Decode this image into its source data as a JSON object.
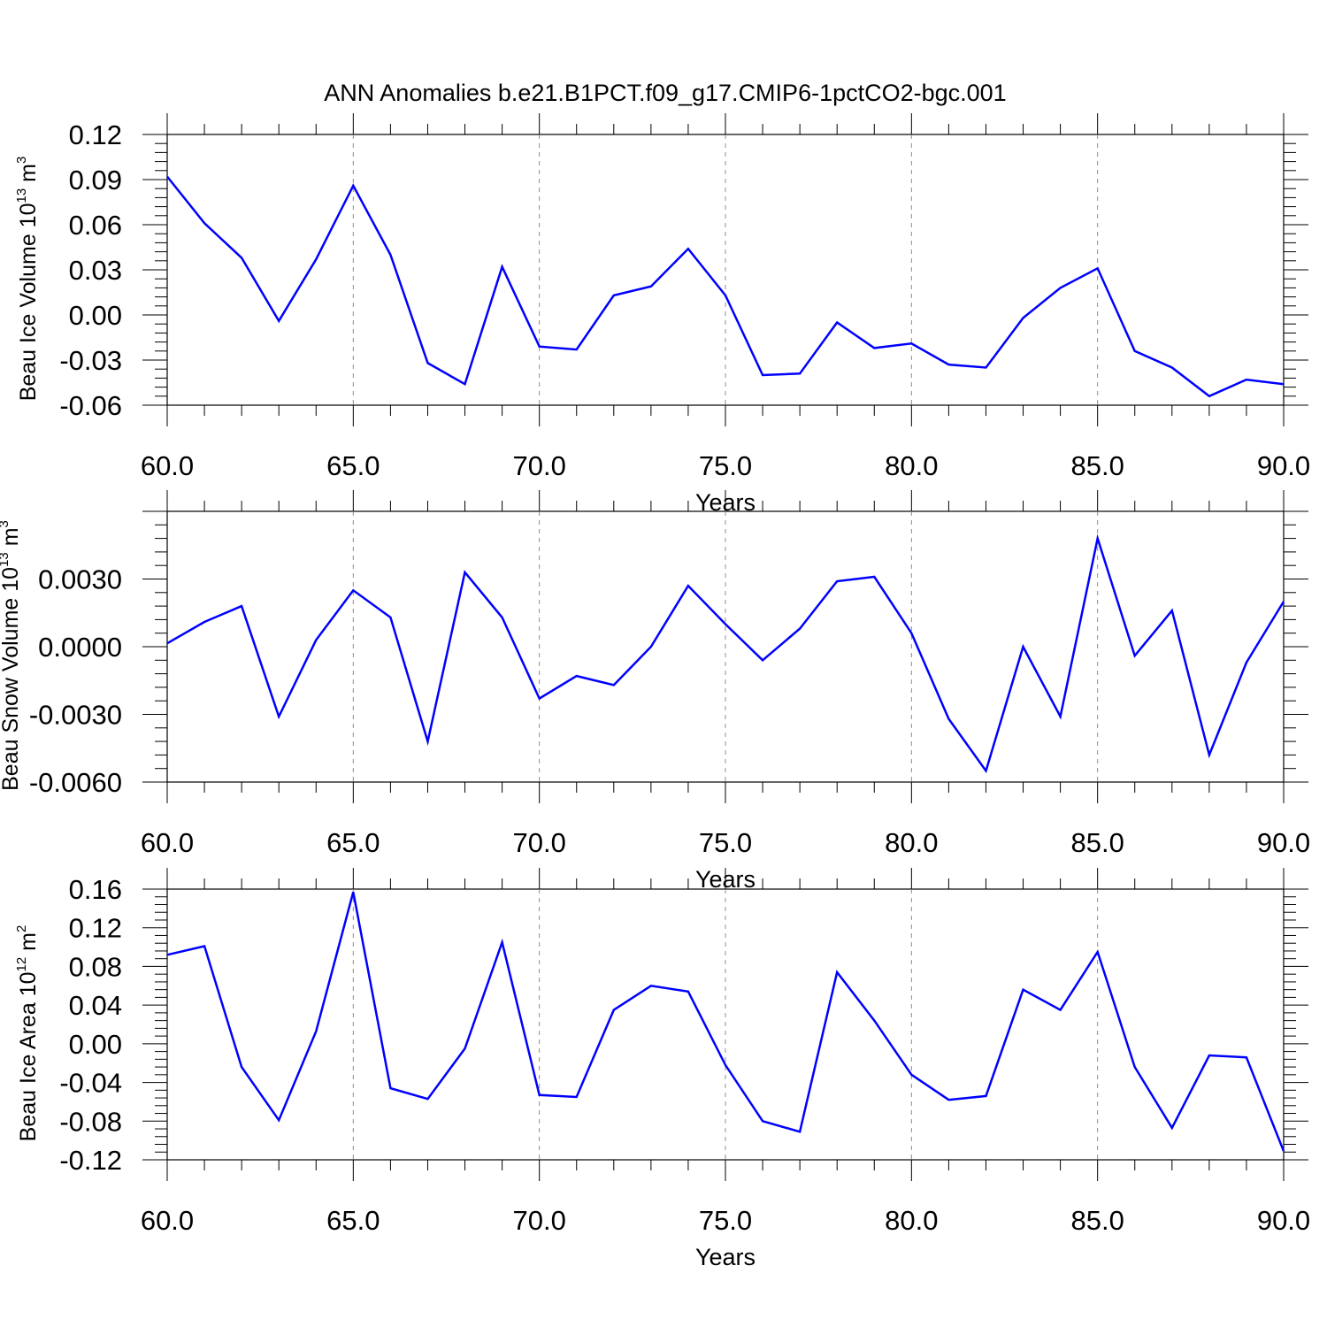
{
  "title": "ANN Anomalies b.e21.B1PCT.f09_g17.CMIP6-1pctCO2-bgc.001",
  "colors": {
    "line": "#0000ff",
    "axis": "#000000",
    "grid": "#8c8c8c",
    "background": "#ffffff"
  },
  "chart_data": [
    {
      "type": "line",
      "ylabel": {
        "text": "Beau Ice Volume 10",
        "exponent": "13",
        "unit": "m",
        "unit_exponent": "3"
      },
      "xlabel": "Years",
      "xlim": [
        60,
        90
      ],
      "ylim": [
        -0.06,
        0.12
      ],
      "xticks": [
        60,
        65,
        70,
        75,
        80,
        85,
        90
      ],
      "xtick_labels": [
        "60.0",
        "65.0",
        "70.0",
        "75.0",
        "80.0",
        "85.0",
        "90.0"
      ],
      "yticks": [
        0.12,
        0.09,
        0.06,
        0.03,
        0.0,
        -0.03,
        -0.06
      ],
      "ytick_labels": [
        "0.12",
        "0.09",
        "0.06",
        "0.03",
        "0.00",
        "-0.03",
        "-0.06"
      ],
      "grid": "vertical dashed at major x ticks",
      "x": [
        60,
        61,
        62,
        63,
        64,
        65,
        66,
        67,
        68,
        69,
        70,
        71,
        72,
        73,
        74,
        75,
        76,
        77,
        78,
        79,
        80,
        81,
        82,
        83,
        84,
        85,
        86,
        87,
        88,
        89,
        90
      ],
      "series": [
        {
          "values": [
            0.092,
            0.061,
            0.038,
            -0.004,
            0.037,
            0.086,
            0.04,
            -0.032,
            -0.046,
            0.032,
            -0.021,
            -0.023,
            0.013,
            0.019,
            0.044,
            0.013,
            -0.04,
            -0.039,
            -0.005,
            -0.022,
            -0.019,
            -0.033,
            -0.035,
            -0.002,
            0.018,
            0.031,
            -0.024,
            -0.035,
            -0.054,
            -0.043,
            -0.046
          ]
        }
      ]
    },
    {
      "type": "line",
      "ylabel": {
        "text": "Beau Snow Volume 10",
        "exponent": "13",
        "unit": "m",
        "unit_exponent": "3"
      },
      "xlabel": "Years",
      "xlim": [
        60,
        90
      ],
      "ylim": [
        -0.006,
        0.006
      ],
      "xticks": [
        60,
        65,
        70,
        75,
        80,
        85,
        90
      ],
      "xtick_labels": [
        "60.0",
        "65.0",
        "70.0",
        "75.0",
        "80.0",
        "85.0",
        "90.0"
      ],
      "yticks": [
        0.003,
        0.0,
        -0.003,
        -0.006
      ],
      "ytick_labels": [
        "0.0030",
        "0.0000",
        "-0.0030",
        "-0.0060"
      ],
      "grid": "vertical dashed at major x ticks",
      "x": [
        60,
        61,
        62,
        63,
        64,
        65,
        66,
        67,
        68,
        69,
        70,
        71,
        72,
        73,
        74,
        75,
        76,
        77,
        78,
        79,
        80,
        81,
        82,
        83,
        84,
        85,
        86,
        87,
        88,
        89,
        90
      ],
      "series": [
        {
          "values": [
            0.00015,
            0.0011,
            0.0018,
            -0.0031,
            0.0003,
            0.0025,
            0.0013,
            -0.0042,
            0.0033,
            0.0013,
            -0.0023,
            -0.0013,
            -0.0017,
            0.0,
            0.0027,
            0.001,
            -0.0006,
            0.0008,
            0.0029,
            0.0031,
            0.0006,
            -0.0032,
            -0.0055,
            0.0,
            -0.0031,
            0.0048,
            -0.0004,
            0.0016,
            -0.0048,
            -0.0007,
            0.002
          ]
        }
      ]
    },
    {
      "type": "line",
      "ylabel": {
        "text": "Beau Ice Area 10",
        "exponent": "12",
        "unit": "m",
        "unit_exponent": "2"
      },
      "xlabel": "Years",
      "xlim": [
        60,
        90
      ],
      "ylim": [
        -0.12,
        0.16
      ],
      "xticks": [
        60,
        65,
        70,
        75,
        80,
        85,
        90
      ],
      "xtick_labels": [
        "60.0",
        "65.0",
        "70.0",
        "75.0",
        "80.0",
        "85.0",
        "90.0"
      ],
      "yticks": [
        0.16,
        0.12,
        0.08,
        0.04,
        0.0,
        -0.04,
        -0.08,
        -0.12
      ],
      "ytick_labels": [
        "0.16",
        "0.12",
        "0.08",
        "0.04",
        "0.00",
        "-0.04",
        "-0.08",
        "-0.12"
      ],
      "grid": "vertical dashed at major x ticks",
      "x": [
        60,
        61,
        62,
        63,
        64,
        65,
        66,
        67,
        68,
        69,
        70,
        71,
        72,
        73,
        74,
        75,
        76,
        77,
        78,
        79,
        80,
        81,
        82,
        83,
        84,
        85,
        86,
        87,
        88,
        89,
        90
      ],
      "series": [
        {
          "values": [
            0.092,
            0.101,
            -0.024,
            -0.079,
            0.013,
            0.157,
            -0.046,
            -0.057,
            -0.005,
            0.105,
            -0.053,
            -0.055,
            0.035,
            0.06,
            0.054,
            -0.022,
            -0.08,
            -0.091,
            0.074,
            0.024,
            -0.032,
            -0.058,
            -0.054,
            0.056,
            0.035,
            0.095,
            -0.024,
            -0.087,
            -0.012,
            -0.014,
            -0.111
          ]
        }
      ]
    }
  ]
}
